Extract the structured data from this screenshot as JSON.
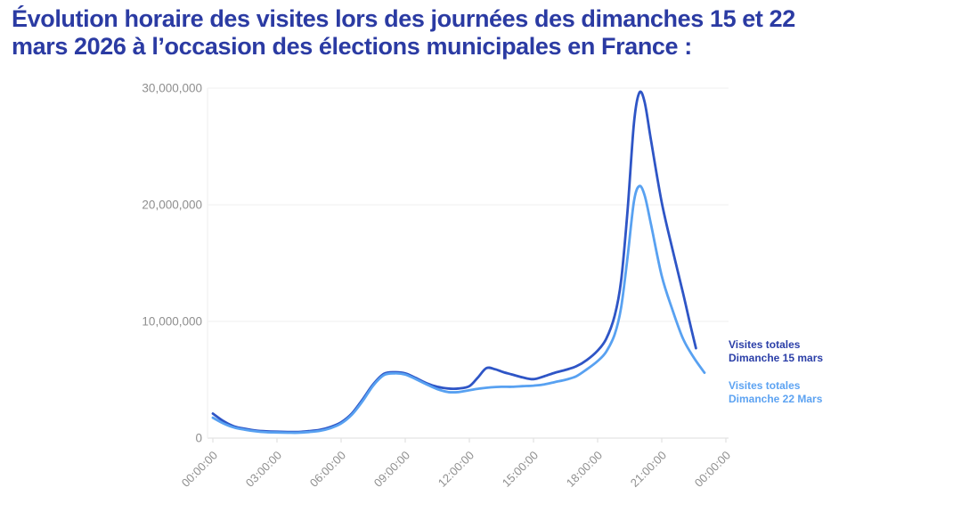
{
  "title": {
    "line1": "Évolution horaire des visites lors des journées des dimanches 15 et 22",
    "line2": "mars 2026 à l’occasion  des élections municipales en France :"
  },
  "colors": {
    "title": "#2b3ba3",
    "series_15_mars": "#2e55c6",
    "series_22_mars": "#58a1f1",
    "legend_15_mars": "#2b3fa8",
    "legend_22_mars": "#5da3f2",
    "axis_text": "#8f8f8f",
    "gridline": "#f2f2f2",
    "axis_line": "#e3e3e3"
  },
  "legend": [
    {
      "line1": "Visites totales",
      "line2": "Dimanche 15 mars"
    },
    {
      "line1": "Visites totales",
      "line2": "Dimanche 22 Mars"
    }
  ],
  "chart_data": {
    "type": "line",
    "title": "",
    "xlabel": "",
    "ylabel": "",
    "grid": "horizontal",
    "legend_position": "right-of-line-ends",
    "xlim_hours": [
      0,
      24
    ],
    "ylim": [
      0,
      30000000
    ],
    "x_ticks": [
      "00:00:00",
      "03:00:00",
      "06:00:00",
      "09:00:00",
      "12:00:00",
      "15:00:00",
      "18:00:00",
      "21:00:00",
      "00:00:00"
    ],
    "x_tick_hours": [
      0,
      3,
      6,
      9,
      12,
      15,
      18,
      21,
      24
    ],
    "y_ticks": [
      "0",
      "10,000,000",
      "20,000,000",
      "30,000,000"
    ],
    "y_tick_values": [
      0,
      10000000,
      20000000,
      30000000
    ],
    "series": [
      {
        "name": "Visites totales Dimanche 15 mars",
        "color_key": "series_15_mars",
        "points": [
          [
            0,
            2100000
          ],
          [
            0.5,
            1450000
          ],
          [
            1,
            1000000
          ],
          [
            1.5,
            800000
          ],
          [
            2,
            650000
          ],
          [
            2.5,
            580000
          ],
          [
            3,
            550000
          ],
          [
            3.5,
            530000
          ],
          [
            4,
            530000
          ],
          [
            4.5,
            600000
          ],
          [
            5,
            700000
          ],
          [
            5.5,
            950000
          ],
          [
            6,
            1350000
          ],
          [
            6.5,
            2100000
          ],
          [
            7,
            3300000
          ],
          [
            7.5,
            4600000
          ],
          [
            8,
            5500000
          ],
          [
            8.5,
            5650000
          ],
          [
            9,
            5550000
          ],
          [
            9.5,
            5150000
          ],
          [
            10,
            4700000
          ],
          [
            10.5,
            4400000
          ],
          [
            11,
            4250000
          ],
          [
            11.5,
            4250000
          ],
          [
            12,
            4450000
          ],
          [
            12.4,
            5200000
          ],
          [
            12.8,
            6000000
          ],
          [
            13.2,
            5900000
          ],
          [
            13.6,
            5650000
          ],
          [
            14,
            5450000
          ],
          [
            14.5,
            5200000
          ],
          [
            15,
            5050000
          ],
          [
            15.5,
            5300000
          ],
          [
            16,
            5600000
          ],
          [
            16.5,
            5850000
          ],
          [
            17,
            6150000
          ],
          [
            17.5,
            6700000
          ],
          [
            18,
            7500000
          ],
          [
            18.4,
            8500000
          ],
          [
            18.8,
            10500000
          ],
          [
            19.1,
            13500000
          ],
          [
            19.4,
            19500000
          ],
          [
            19.7,
            27000000
          ],
          [
            19.95,
            29600000
          ],
          [
            20.2,
            28800000
          ],
          [
            20.5,
            25500000
          ],
          [
            21,
            20200000
          ],
          [
            21.5,
            16200000
          ],
          [
            22,
            12400000
          ],
          [
            22.3,
            10000000
          ],
          [
            22.6,
            7700000
          ]
        ]
      },
      {
        "name": "Visites totales Dimanche 22 Mars",
        "color_key": "series_22_mars",
        "points": [
          [
            0,
            1750000
          ],
          [
            0.5,
            1250000
          ],
          [
            1,
            900000
          ],
          [
            1.5,
            720000
          ],
          [
            2,
            580000
          ],
          [
            2.5,
            500000
          ],
          [
            3,
            480000
          ],
          [
            3.5,
            460000
          ],
          [
            4,
            460000
          ],
          [
            4.5,
            520000
          ],
          [
            5,
            620000
          ],
          [
            5.5,
            850000
          ],
          [
            6,
            1250000
          ],
          [
            6.5,
            2000000
          ],
          [
            7,
            3150000
          ],
          [
            7.5,
            4500000
          ],
          [
            8,
            5400000
          ],
          [
            8.5,
            5550000
          ],
          [
            9,
            5450000
          ],
          [
            9.5,
            5050000
          ],
          [
            10,
            4600000
          ],
          [
            10.5,
            4200000
          ],
          [
            11,
            3950000
          ],
          [
            11.5,
            3950000
          ],
          [
            12,
            4100000
          ],
          [
            12.5,
            4250000
          ],
          [
            13,
            4350000
          ],
          [
            13.5,
            4400000
          ],
          [
            14,
            4400000
          ],
          [
            14.5,
            4450000
          ],
          [
            15,
            4500000
          ],
          [
            15.5,
            4600000
          ],
          [
            16,
            4800000
          ],
          [
            16.5,
            5000000
          ],
          [
            17,
            5300000
          ],
          [
            17.5,
            5900000
          ],
          [
            18,
            6600000
          ],
          [
            18.4,
            7400000
          ],
          [
            18.8,
            8900000
          ],
          [
            19.1,
            11200000
          ],
          [
            19.4,
            15500000
          ],
          [
            19.7,
            20300000
          ],
          [
            19.95,
            21600000
          ],
          [
            20.2,
            20800000
          ],
          [
            20.5,
            18300000
          ],
          [
            21,
            13900000
          ],
          [
            21.5,
            11000000
          ],
          [
            22,
            8500000
          ],
          [
            22.5,
            6900000
          ],
          [
            23,
            5600000
          ]
        ]
      }
    ]
  }
}
